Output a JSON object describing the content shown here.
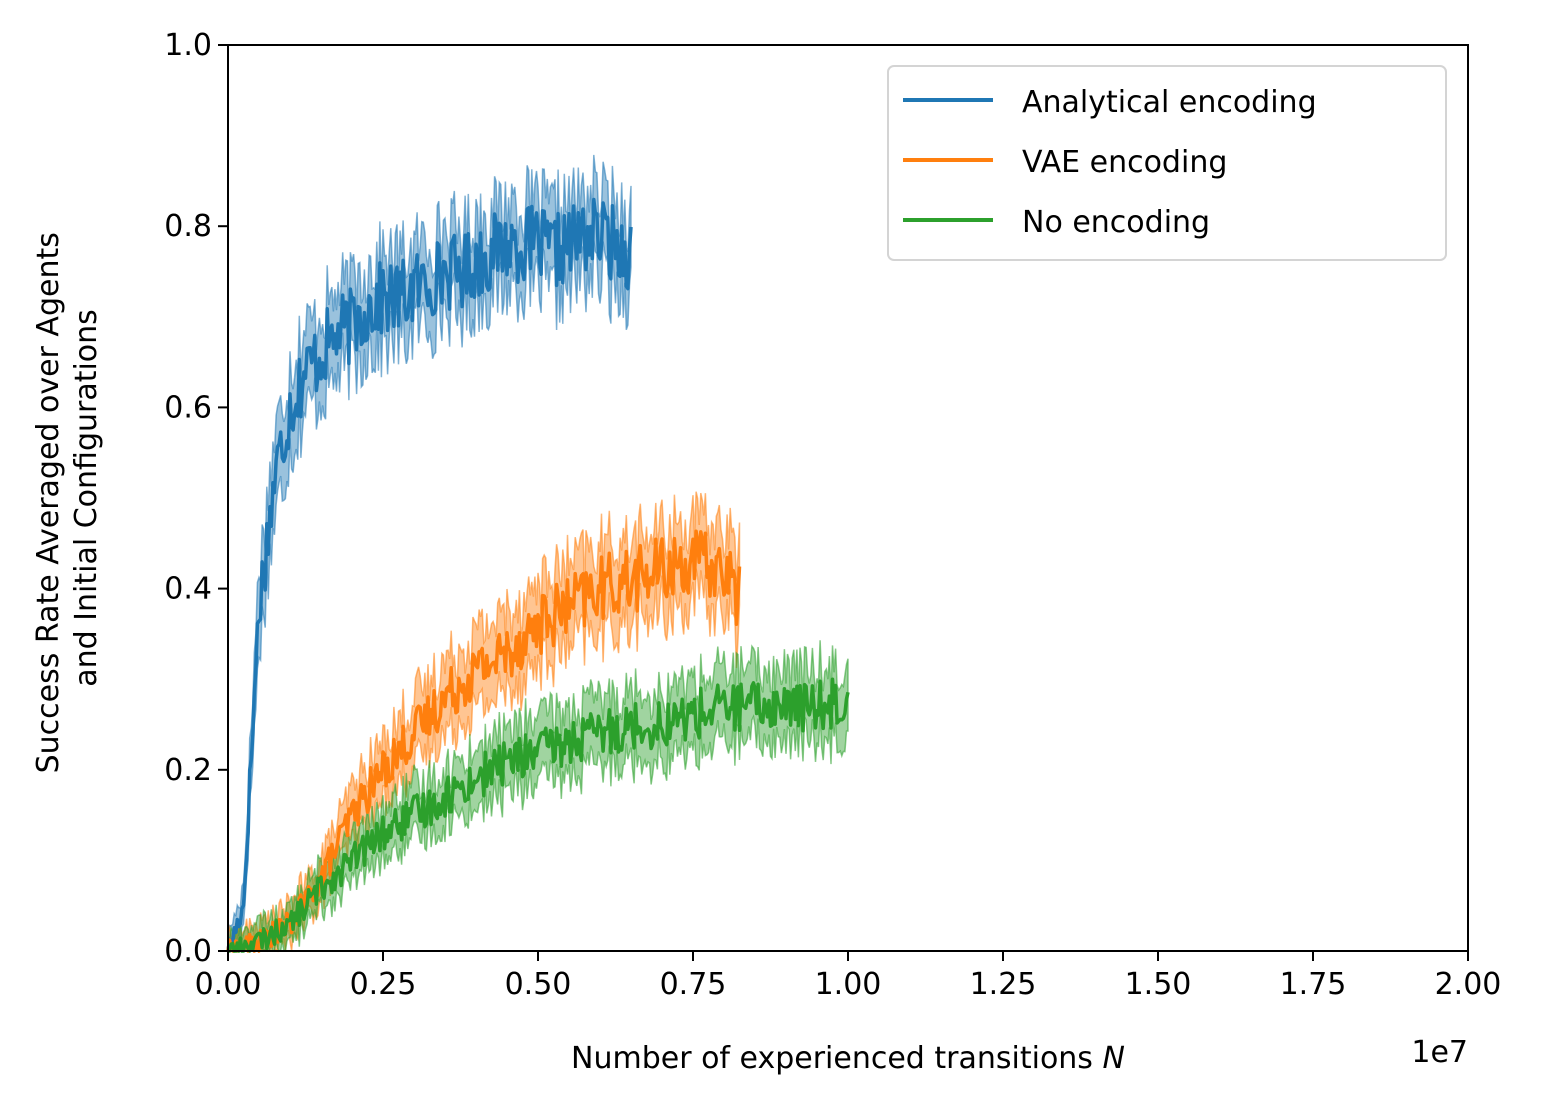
{
  "chart_data": {
    "type": "line",
    "xlabel": "Number of experienced transitions",
    "xlabel_var": "N",
    "ylabel_lines": [
      "Success Rate Averaged over Agents",
      "and Initial Configurations"
    ],
    "x_scale_note": "1e7",
    "xlim": [
      0,
      20000000
    ],
    "ylim": [
      0,
      1.0
    ],
    "x_ticks": [
      0,
      2500000,
      5000000,
      7500000,
      10000000,
      12500000,
      15000000,
      17500000,
      20000000
    ],
    "x_tick_labels": [
      "0.00",
      "0.25",
      "0.50",
      "0.75",
      "1.00",
      "1.25",
      "1.50",
      "1.75",
      "2.00"
    ],
    "y_ticks": [
      0,
      0.2,
      0.4,
      0.6,
      0.8,
      1.0
    ],
    "y_tick_labels": [
      "0.0",
      "0.2",
      "0.4",
      "0.6",
      "0.8",
      "1.0"
    ],
    "grid": false,
    "legend_position": "top-right",
    "series": [
      {
        "name": "Analytical encoding",
        "color": "#1f77b4",
        "x": [
          0,
          250000,
          500000,
          750000,
          1000000,
          1250000,
          1500000,
          1750000,
          2000000,
          2250000,
          2500000,
          2750000,
          3000000,
          3250000,
          3500000,
          3750000,
          4000000,
          4250000,
          4500000,
          4750000,
          5000000,
          5250000,
          5500000,
          5750000,
          6000000,
          6250000,
          6500000
        ],
        "y": [
          0.0,
          0.05,
          0.38,
          0.52,
          0.6,
          0.64,
          0.66,
          0.68,
          0.69,
          0.71,
          0.72,
          0.72,
          0.73,
          0.74,
          0.75,
          0.75,
          0.76,
          0.77,
          0.78,
          0.78,
          0.78,
          0.77,
          0.78,
          0.79,
          0.79,
          0.78,
          0.77
        ],
        "band": 0.04
      },
      {
        "name": "VAE encoding",
        "color": "#ff7f0e",
        "x": [
          0,
          500000,
          1000000,
          1500000,
          2000000,
          2500000,
          3000000,
          3500000,
          4000000,
          4500000,
          5000000,
          5500000,
          6000000,
          6500000,
          7000000,
          7500000,
          8000000,
          8250000
        ],
        "y": [
          0.0,
          0.01,
          0.03,
          0.08,
          0.15,
          0.2,
          0.24,
          0.28,
          0.31,
          0.33,
          0.36,
          0.38,
          0.4,
          0.41,
          0.42,
          0.43,
          0.42,
          0.39
        ],
        "band": 0.04
      },
      {
        "name": "No encoding",
        "color": "#2ca02c",
        "x": [
          0,
          500000,
          1000000,
          1500000,
          2000000,
          2500000,
          3000000,
          3500000,
          4000000,
          4500000,
          5000000,
          5500000,
          6000000,
          6500000,
          7000000,
          7500000,
          8000000,
          8500000,
          9000000,
          9500000,
          10000000
        ],
        "y": [
          0.0,
          0.01,
          0.03,
          0.07,
          0.1,
          0.13,
          0.15,
          0.17,
          0.19,
          0.21,
          0.22,
          0.23,
          0.24,
          0.25,
          0.25,
          0.26,
          0.27,
          0.27,
          0.27,
          0.27,
          0.28
        ],
        "band": 0.04
      }
    ]
  }
}
